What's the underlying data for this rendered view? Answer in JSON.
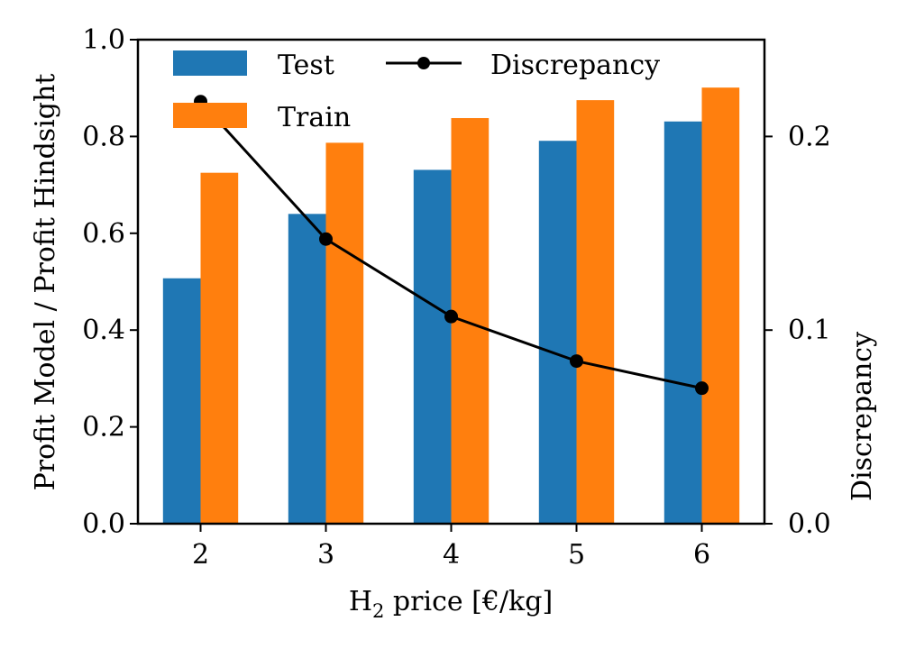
{
  "chart_data": {
    "type": "bar",
    "categories": [
      "2",
      "3",
      "4",
      "5",
      "6"
    ],
    "series": [
      {
        "name": "Test",
        "values": [
          0.507,
          0.64,
          0.731,
          0.791,
          0.831
        ],
        "color": "#1f77b4",
        "axis": "left"
      },
      {
        "name": "Train",
        "values": [
          0.725,
          0.787,
          0.838,
          0.875,
          0.901
        ],
        "color": "#ff7f0e",
        "axis": "left"
      }
    ],
    "line_series": {
      "name": "Discrepancy",
      "values": [
        0.218,
        0.147,
        0.107,
        0.084,
        0.07
      ],
      "color": "#000000",
      "axis": "right"
    },
    "xlabel": {
      "main": "H",
      "sub": "2",
      "rest": " price [€/kg]"
    },
    "ylabel": "Profit Model / Profit Hindsight",
    "y2label": "Discrepancy",
    "ylim": [
      0,
      1.0
    ],
    "y2lim": [
      0,
      0.25
    ],
    "yticks": [
      "0.0",
      "0.2",
      "0.4",
      "0.6",
      "0.8",
      "1.0"
    ],
    "y2ticks": [
      "0.0",
      "0.1",
      "0.2"
    ],
    "legend": {
      "position": "top-left",
      "columns": 2
    },
    "grid": false
  }
}
